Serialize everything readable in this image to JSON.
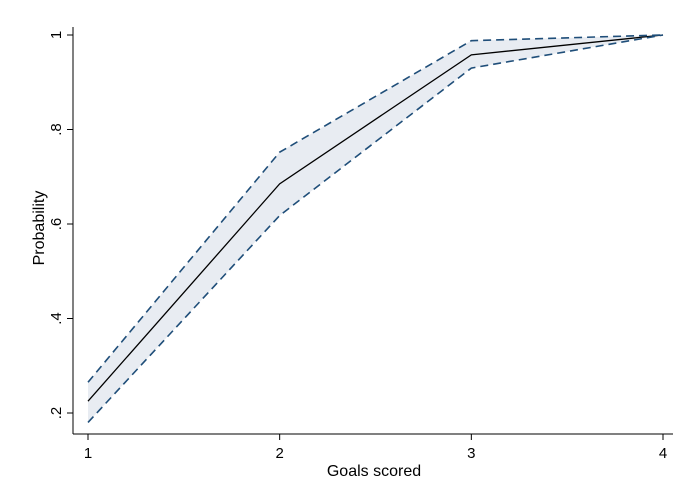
{
  "chart_data": {
    "type": "line",
    "xlabel": "Goals scored",
    "ylabel": "Probability",
    "x": [
      1,
      2,
      3,
      4
    ],
    "xticks": [
      "1",
      "2",
      "3",
      "4"
    ],
    "yticks": [
      {
        "value": 0.2,
        "label": ".2"
      },
      {
        "value": 0.4,
        "label": ".4"
      },
      {
        "value": 0.6,
        "label": ".6"
      },
      {
        "value": 0.8,
        "label": ".8"
      },
      {
        "value": 1.0,
        "label": "1"
      }
    ],
    "xlim": [
      1,
      4
    ],
    "ylim": [
      0.2,
      1.0
    ],
    "grid": false,
    "series": [
      {
        "role": "estimate",
        "values": [
          0.225,
          0.685,
          0.958,
          1.0
        ],
        "color": "#000000",
        "style": "solid"
      },
      {
        "role": "upper_bound",
        "values": [
          0.265,
          0.752,
          0.988,
          1.0
        ],
        "color": "#1f4e79",
        "style": "dashed"
      },
      {
        "role": "lower_bound",
        "values": [
          0.18,
          0.618,
          0.93,
          1.0
        ],
        "color": "#1f4e79",
        "style": "dashed"
      }
    ],
    "band_fill": "#e8ecf2"
  }
}
